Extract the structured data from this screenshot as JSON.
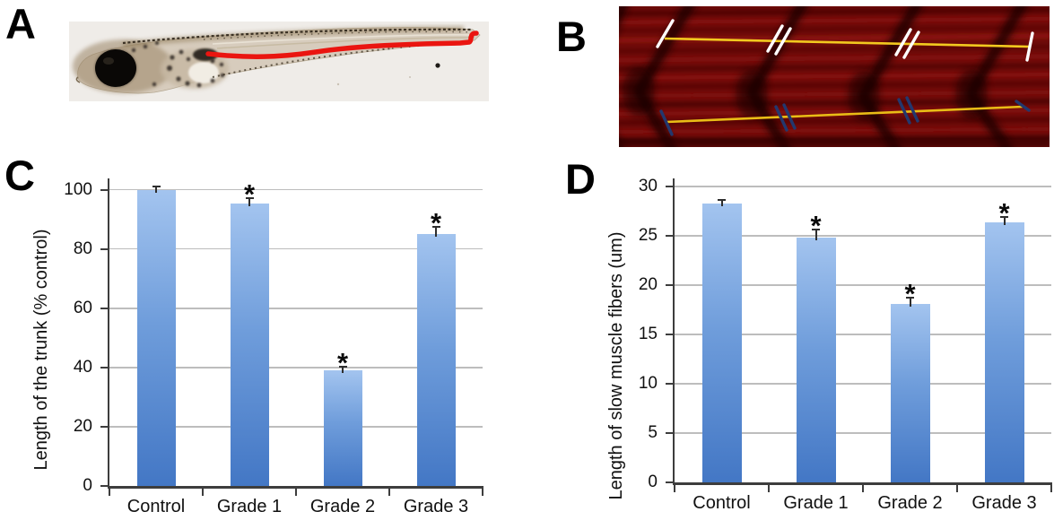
{
  "figure": {
    "panels": [
      {
        "letter": "A"
      },
      {
        "letter": "B"
      },
      {
        "letter": "C"
      },
      {
        "letter": "D"
      }
    ],
    "colors": {
      "trunk_trace_red": "#ea1510",
      "measurement_line_yellow": "#f2c91f",
      "measurement_tick_white": "#ffffff",
      "measurement_tick_navy": "#23386e"
    }
  },
  "chart_data": [
    {
      "type": "bar",
      "panel": "C",
      "title": "",
      "xlabel": "",
      "ylabel": "Length of the trunk (% control)",
      "categories": [
        "Control",
        "Grade 1",
        "Grade 2",
        "Grade 3"
      ],
      "values": [
        100,
        95.5,
        39,
        85
      ],
      "errors": [
        1.2,
        1.6,
        1.4,
        2.5
      ],
      "significant": [
        false,
        true,
        true,
        true
      ],
      "sig_marker": "*",
      "ylim": [
        0,
        100
      ],
      "ytick_step": 20,
      "ytick_labels": [
        "0",
        "20",
        "40",
        "60",
        "80",
        "100"
      ],
      "grid": true,
      "legend": "none",
      "bar_color_top": "#a3c4ef",
      "bar_color_mid": "#6f9ddb",
      "bar_color_bottom": "#4377c5"
    },
    {
      "type": "bar",
      "panel": "D",
      "title": "",
      "xlabel": "",
      "ylabel": "Length of slow muscle fibers (um)",
      "categories": [
        "Control",
        "Grade 1",
        "Grade 2",
        "Grade 3"
      ],
      "values": [
        28.3,
        24.8,
        18.1,
        26.4
      ],
      "errors": [
        0.35,
        0.8,
        0.6,
        0.5
      ],
      "significant": [
        false,
        true,
        true,
        true
      ],
      "sig_marker": "*",
      "ylim": [
        0,
        30
      ],
      "ytick_step": 5,
      "ytick_labels": [
        "0",
        "5",
        "10",
        "15",
        "20",
        "25",
        "30"
      ],
      "grid": true,
      "legend": "none",
      "bar_color_top": "#a3c4ef",
      "bar_color_mid": "#6f9ddb",
      "bar_color_bottom": "#4377c5"
    }
  ]
}
